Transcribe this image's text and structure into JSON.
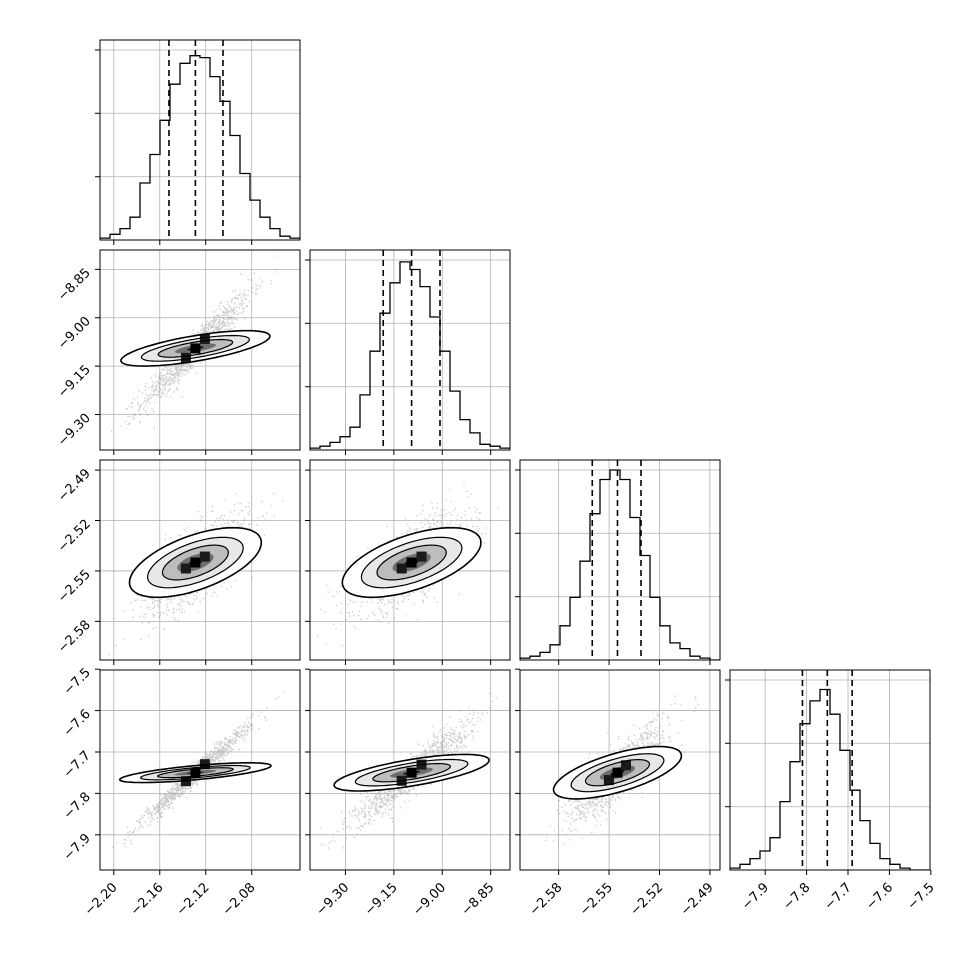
{
  "chart_data": {
    "type": "corner",
    "parameters": [
      {
        "ticks": [
          -2.2,
          -2.16,
          -2.12,
          -2.08
        ],
        "tick_labels": [
          "−2.20",
          "−2.16",
          "−2.12",
          "−2.08"
        ],
        "range": [
          -2.212,
          -2.038
        ],
        "quantiles": [
          -2.152,
          -2.129,
          -2.105
        ]
      },
      {
        "ticks": [
          -9.3,
          -9.15,
          -9.0,
          -8.85
        ],
        "tick_labels": [
          "−9.30",
          "−9.15",
          "−9.00",
          "−8.85"
        ],
        "range": [
          -9.41,
          -8.79
        ],
        "quantiles": [
          -9.183,
          -9.095,
          -9.007
        ]
      },
      {
        "ticks": [
          -2.58,
          -2.55,
          -2.52,
          -2.49
        ],
        "tick_labels": [
          "−2.58",
          "−2.55",
          "−2.52",
          "−2.49"
        ],
        "range": [
          -2.603,
          -2.484
        ],
        "quantiles": [
          -2.56,
          -2.545,
          -2.531
        ]
      },
      {
        "ticks": [
          -7.9,
          -7.8,
          -7.7,
          -7.6,
          -7.5
        ],
        "tick_labels": [
          "−7.9",
          "−7.8",
          "−7.7",
          "−7.6",
          "−7.5"
        ],
        "range": [
          -7.985,
          -7.502
        ],
        "quantiles": [
          -7.81,
          -7.75,
          -7.69
        ]
      }
    ],
    "histograms": [
      [
        0.01,
        0.03,
        0.06,
        0.12,
        0.3,
        0.45,
        0.63,
        0.82,
        0.93,
        0.97,
        0.96,
        0.86,
        0.73,
        0.55,
        0.35,
        0.21,
        0.12,
        0.06,
        0.02,
        0.01
      ],
      [
        0.01,
        0.02,
        0.04,
        0.07,
        0.12,
        0.29,
        0.52,
        0.72,
        0.88,
        0.99,
        0.95,
        0.86,
        0.7,
        0.52,
        0.31,
        0.16,
        0.09,
        0.03,
        0.02,
        0.01
      ],
      [
        0.01,
        0.02,
        0.04,
        0.08,
        0.18,
        0.33,
        0.52,
        0.77,
        0.95,
        1.0,
        0.95,
        0.75,
        0.55,
        0.33,
        0.18,
        0.09,
        0.06,
        0.02,
        0.01,
        0.0
      ],
      [
        0.01,
        0.03,
        0.06,
        0.1,
        0.17,
        0.36,
        0.57,
        0.77,
        0.89,
        0.95,
        0.82,
        0.63,
        0.42,
        0.26,
        0.14,
        0.06,
        0.03,
        0.01,
        0.0,
        0.0
      ]
    ],
    "correlations": [
      [
        1.0,
        0.95,
        0.7,
        0.98
      ],
      [
        0.95,
        1.0,
        0.7,
        0.93
      ],
      [
        0.7,
        0.7,
        1.0,
        0.85
      ],
      [
        0.98,
        0.93,
        0.85,
        1.0
      ]
    ],
    "grid": true
  }
}
